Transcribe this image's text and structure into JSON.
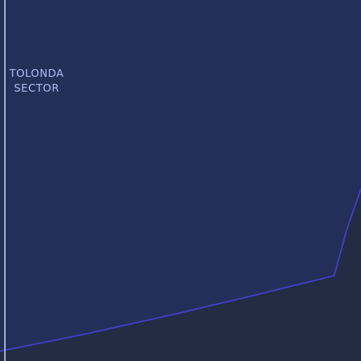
{
  "map": {
    "region_label": {
      "line1": "TOLONDA",
      "line2": "SECTOR"
    },
    "colors": {
      "land": "#232f59",
      "water": "#222c42",
      "boundary_line": "#4040c8",
      "meridian_line": "#b8bcd8",
      "label": "#b3b9f0"
    }
  }
}
